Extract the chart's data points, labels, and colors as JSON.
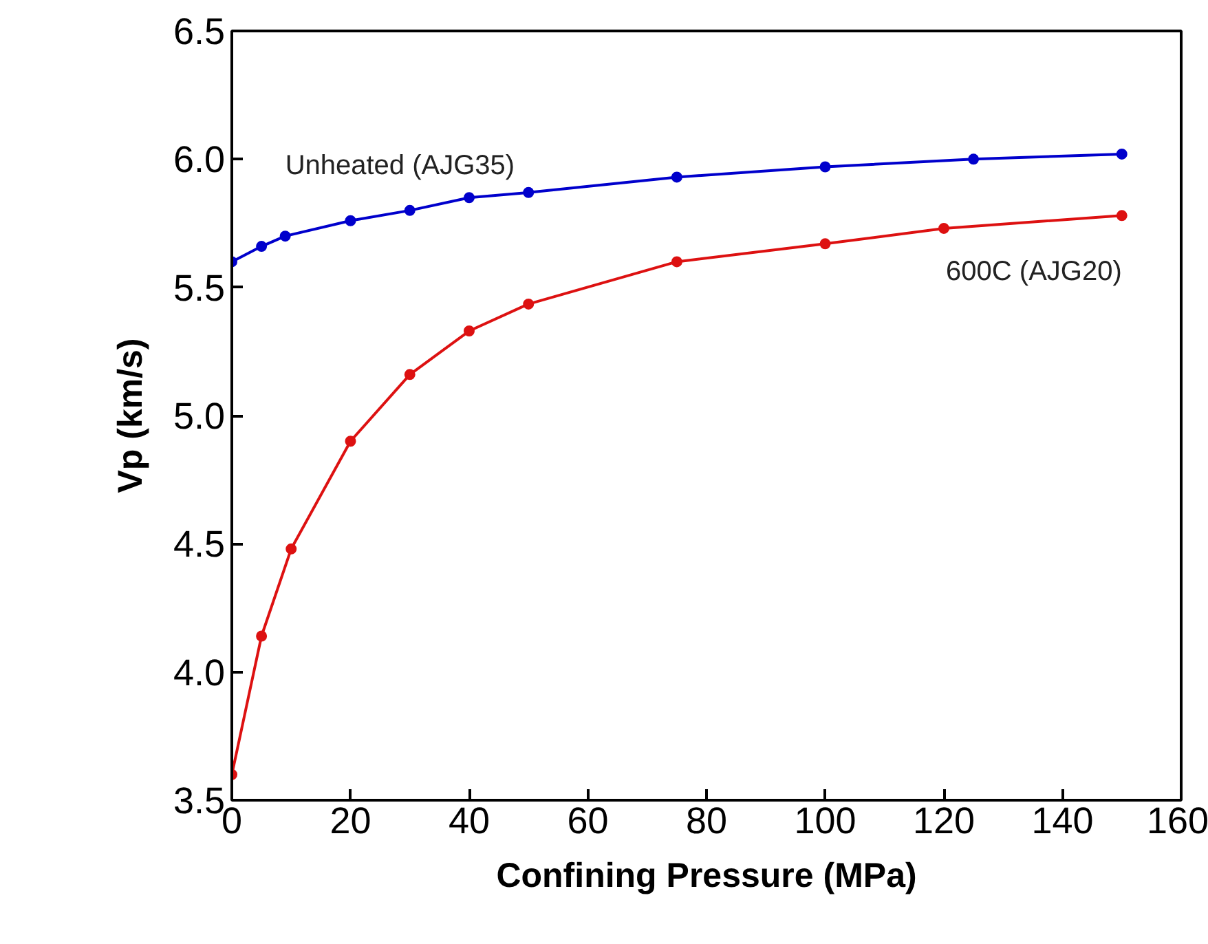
{
  "chart_data": {
    "type": "line",
    "xlabel": "Confining Pressure (MPa)",
    "ylabel": "Vp (km/s)",
    "xlim": [
      0,
      160
    ],
    "xticks": [
      0,
      20,
      40,
      60,
      80,
      100,
      120,
      140,
      160
    ],
    "ylim": [
      3.5,
      6.5
    ],
    "yticks": [
      {
        "value": 3.5,
        "label": "3.5"
      },
      {
        "value": 4.0,
        "label": "4.0"
      },
      {
        "value": 4.5,
        "label": "4.5"
      },
      {
        "value": 5.0,
        "label": "5.0"
      },
      {
        "value": 5.5,
        "label": "5.5"
      },
      {
        "value": 6.0,
        "label": "6.0"
      },
      {
        "value": 6.5,
        "label": "6.5"
      }
    ],
    "marker": "circle",
    "grid": false,
    "series": [
      {
        "name": "Unheated (AJG35)",
        "color": "#0000cc",
        "x": [
          0,
          5,
          9,
          20,
          30,
          40,
          50,
          75,
          100,
          125,
          150
        ],
        "values": [
          5.6,
          5.66,
          5.7,
          5.76,
          5.8,
          5.85,
          5.87,
          5.93,
          5.97,
          6.0,
          6.02
        ]
      },
      {
        "name": "600C (AJG20)",
        "color": "#dd1111",
        "x": [
          0,
          5,
          10,
          20,
          30,
          40,
          50,
          75,
          100,
          120,
          150
        ],
        "values": [
          3.6,
          4.14,
          4.48,
          4.9,
          5.16,
          5.33,
          5.435,
          5.6,
          5.67,
          5.73,
          5.78
        ]
      }
    ]
  }
}
